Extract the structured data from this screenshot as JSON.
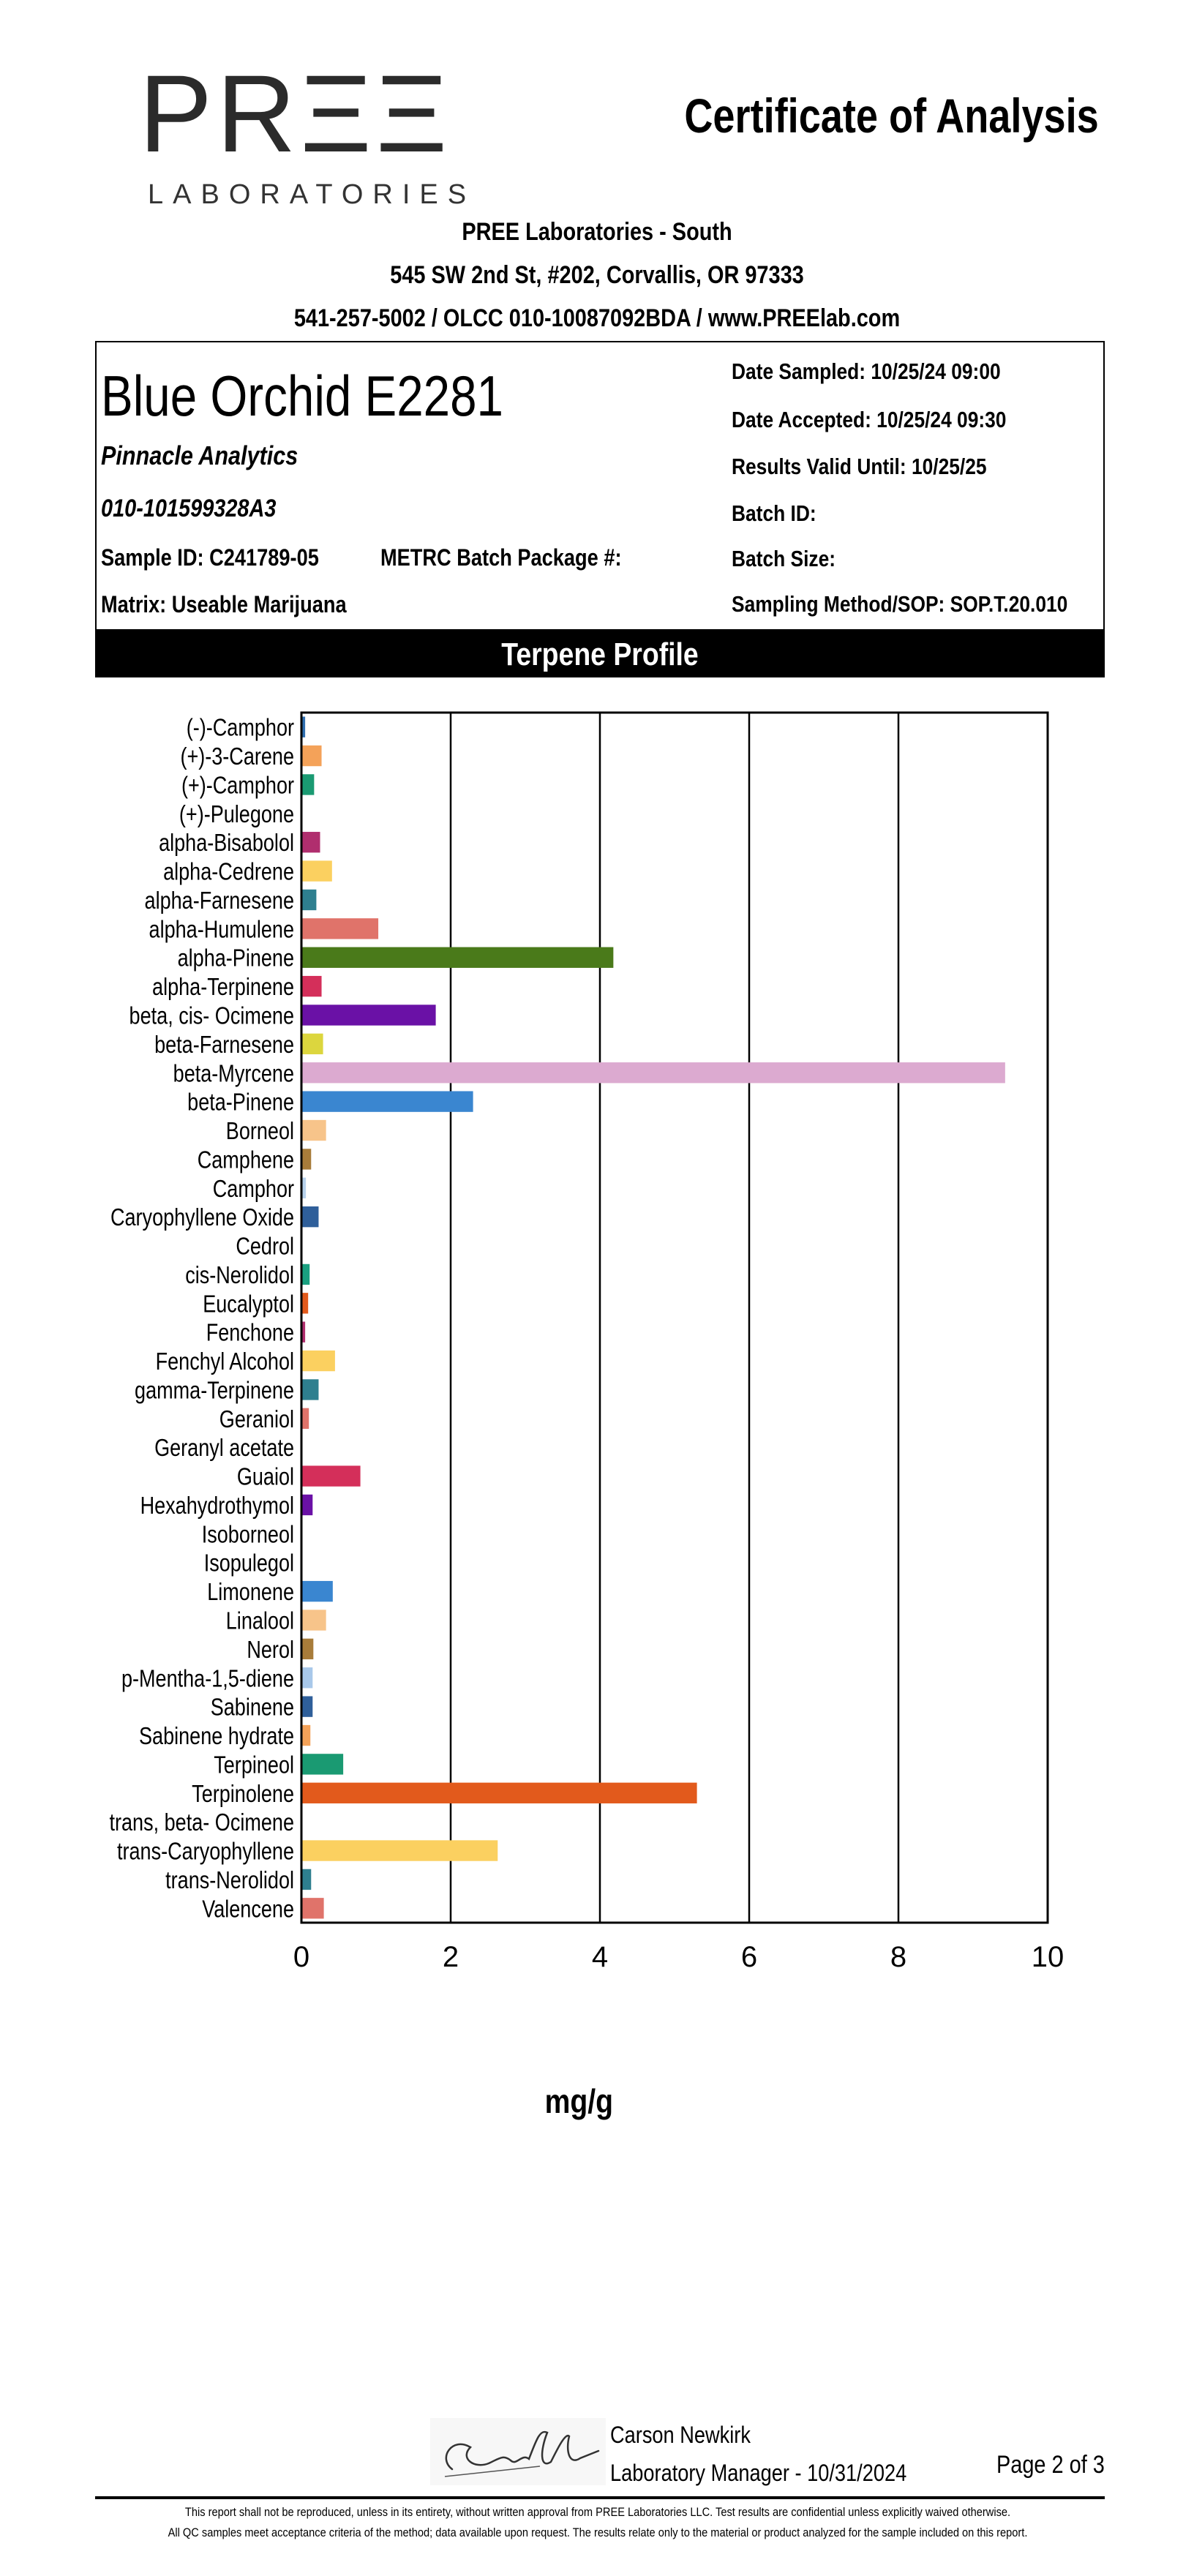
{
  "header": {
    "logo_text": "PRΞΞ",
    "logo_subtext": "LABORATORIES",
    "doc_title": "Certificate of Analysis",
    "lab_name": "PREE Laboratories - South",
    "address": "545 SW 2nd St, #202, Corvallis, OR 97333",
    "contact": "541-257-5002 / OLCC 010-10087092BDA / www.PREElab.com"
  },
  "sample": {
    "name": "Blue Orchid E2281",
    "client": "Pinnacle Analytics",
    "license": "010-101599328A3",
    "sample_id": "Sample ID:  C241789-05",
    "metrc": "METRC Batch Package #:",
    "matrix": "Matrix: Useable Marijuana",
    "date_sampled": "Date  Sampled:  10/25/24  09:00",
    "date_accepted": "Date Accepted:  10/25/24  09:30",
    "valid_until": "Results Valid Until: 10/25/25",
    "batch_id": "Batch ID:",
    "batch_size": "Batch Size:",
    "sop": "Sampling Method/SOP:  SOP.T.20.010"
  },
  "section_title": "Terpene Profile",
  "chart_data": {
    "type": "bar",
    "orientation": "horizontal",
    "xlabel": "mg/g",
    "xlim": [
      0,
      10
    ],
    "xticks": [
      "0",
      "2",
      "4",
      "6",
      "8",
      "10"
    ],
    "grid": true,
    "categories": [
      "(-)-Camphor",
      "(+)-3-Carene",
      "(+)-Camphor",
      "(+)-Pulegone",
      "alpha-Bisabolol",
      "alpha-Cedrene",
      "alpha-Farnesene",
      "alpha-Humulene",
      "alpha-Pinene",
      "alpha-Terpinene",
      "beta, cis- Ocimene",
      "beta-Farnesene",
      "beta-Myrcene",
      "beta-Pinene",
      "Borneol",
      "Camphene",
      "Camphor",
      "Caryophyllene Oxide",
      "Cedrol",
      "cis-Nerolidol",
      "Eucalyptol",
      "Fenchone",
      "Fenchyl Alcohol",
      "gamma-Terpinene",
      "Geraniol",
      "Geranyl acetate",
      "Guaiol",
      "Hexahydrothymol",
      "Isoborneol",
      "Isopulegol",
      "Limonene",
      "Linalool",
      "Nerol",
      "p-Mentha-1,5-diene",
      "Sabinene",
      "Sabinene hydrate",
      "Terpineol",
      "Terpinolene",
      "trans, beta- Ocimene",
      "trans-Caryophyllene",
      "trans-Nerolidol",
      "Valencene"
    ],
    "values": [
      0.05,
      0.27,
      0.17,
      0.0,
      0.25,
      0.41,
      0.2,
      1.03,
      4.18,
      0.27,
      1.8,
      0.29,
      9.43,
      2.3,
      0.33,
      0.13,
      0.06,
      0.23,
      0.0,
      0.11,
      0.09,
      0.05,
      0.45,
      0.23,
      0.1,
      0.0,
      0.79,
      0.15,
      0.0,
      0.0,
      0.42,
      0.33,
      0.16,
      0.15,
      0.15,
      0.12,
      0.56,
      5.3,
      0.0,
      2.63,
      0.13,
      0.3
    ],
    "colors": [
      "#2f6fb0",
      "#f4a259",
      "#1a9a72",
      "#cccccc",
      "#b02e6e",
      "#fbd060",
      "#2e7f8f",
      "#e0736a",
      "#4a7a1a",
      "#d42f5a",
      "#6a11a6",
      "#dcd63e",
      "#dcaad0",
      "#3a86d0",
      "#f7c48a",
      "#a87c3a",
      "#b8d2ec",
      "#2f5f9a",
      "#cccccc",
      "#1aa080",
      "#e25a1c",
      "#b02e6e",
      "#fbd060",
      "#2e7f8f",
      "#e0736a",
      "#cccccc",
      "#d42f5a",
      "#6a11a6",
      "#cccccc",
      "#cccccc",
      "#3a86d0",
      "#f7c48a",
      "#a87c3a",
      "#a8c8ea",
      "#2f5f9a",
      "#f4a259",
      "#1a9a72",
      "#e25a1c",
      "#cccccc",
      "#fbd060",
      "#2e7f8f",
      "#e0736a"
    ]
  },
  "signature": {
    "name": "Carson Newkirk",
    "title": "Laboratory Manager - 10/31/2024"
  },
  "page_number": "Page 2 of 3",
  "disclaimer": {
    "line1": "This report shall not be reproduced, unless in its entirety, without written approval from PREE Laboratories LLC. Test results are confidential unless explicitly waived otherwise.",
    "line2": "All QC samples meet acceptance criteria of the method; data available upon request. The results relate only to the material or product analyzed for the sample included on this report."
  }
}
